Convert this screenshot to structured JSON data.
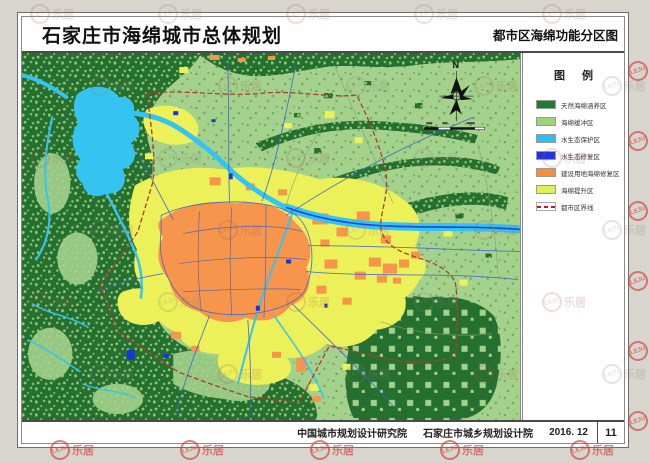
{
  "header": {
    "title_left": "石家庄市海绵城市总体规划",
    "title_right": "都市区海绵功能分区图"
  },
  "legend": {
    "title": "图 例",
    "items": [
      {
        "label": "天然海绵涵养区",
        "color": "#1f7a34",
        "type": "fill"
      },
      {
        "label": "海绵缓冲区",
        "color": "#9cd47e",
        "type": "fill"
      },
      {
        "label": "水生态保护区",
        "color": "#2fbfef",
        "type": "fill"
      },
      {
        "label": "水生态修复区",
        "color": "#1a35e0",
        "type": "fill"
      },
      {
        "label": "建设用地海绵修复区",
        "color": "#f68c3f",
        "type": "fill"
      },
      {
        "label": "海绵提升区",
        "color": "#ddf05a",
        "type": "fill"
      },
      {
        "label": "都市区界线",
        "color": "#e01010",
        "type": "dashed-line"
      }
    ]
  },
  "map": {
    "north_label": "N",
    "colors": {
      "buffer_base": "#a4d28c",
      "natural_sponge": "#256f31",
      "water_protect": "#35c4f2",
      "water_restore": "#1c46d8",
      "built_restore": "#f6954b",
      "sponge_upgrade": "#edf159",
      "road": "#3b63c9",
      "metro_boundary": "#ae3e2b"
    }
  },
  "footer": {
    "org1": "中国城市规划设计研究院",
    "org2": "石家庄市城乡规划设计院",
    "date": "2016. 12",
    "page": "11"
  },
  "watermark": {
    "brand": "LEJU",
    "text": "乐居"
  }
}
